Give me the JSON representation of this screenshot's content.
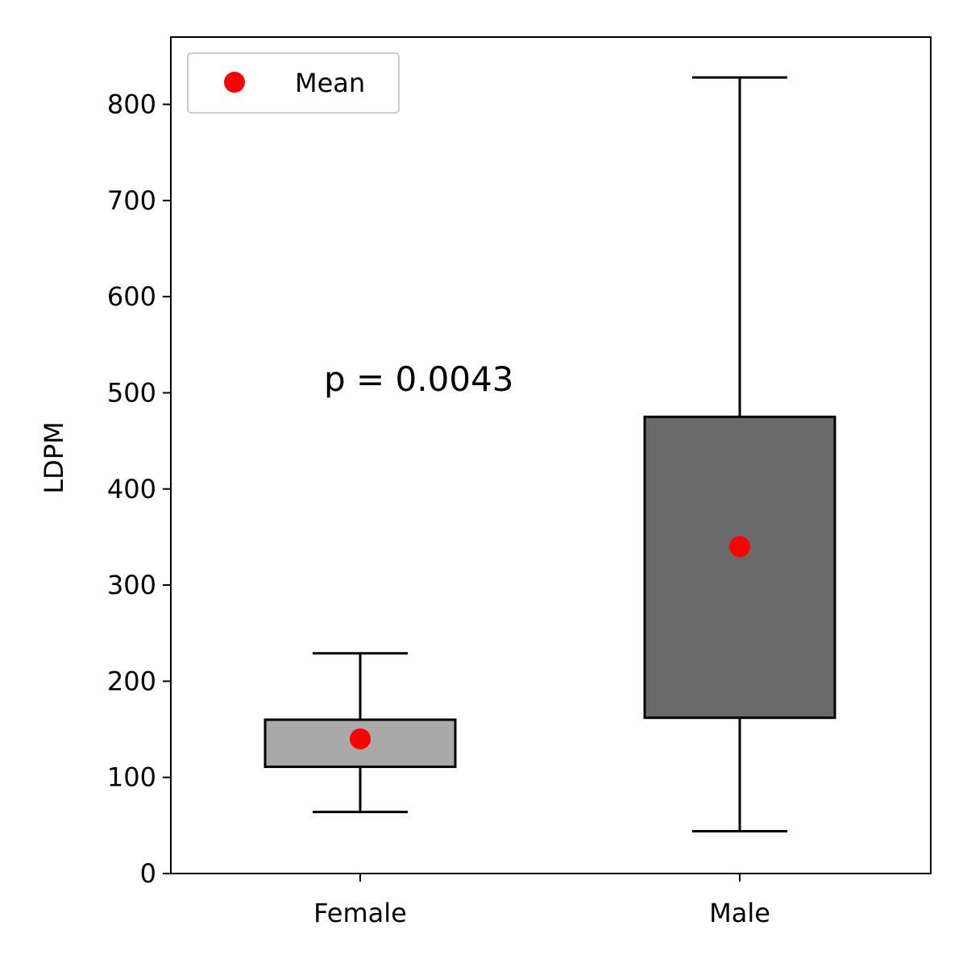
{
  "chart_data": {
    "type": "box",
    "categories": [
      "Female",
      "Male"
    ],
    "ylabel": "LDPM",
    "xlabel": "",
    "ylim": [
      0,
      870
    ],
    "yticks": [
      0,
      100,
      200,
      300,
      400,
      500,
      600,
      700,
      800
    ],
    "grid": false,
    "legend": {
      "placement": "top-left",
      "entries": [
        "Mean"
      ]
    },
    "annotation": "p = 0.0043",
    "boxes": [
      {
        "category": "Female",
        "whisker_low": 64,
        "q1": 111,
        "q3": 160,
        "whisker_high": 229,
        "mean": 140,
        "fill": "#a9a9a9"
      },
      {
        "category": "Male",
        "whisker_low": 44,
        "q1": 162,
        "q3": 475,
        "whisker_high": 828,
        "mean": 340,
        "fill": "#696969"
      }
    ],
    "colors": {
      "mean_marker": "#ff0000",
      "box_edge": "#000000"
    }
  }
}
